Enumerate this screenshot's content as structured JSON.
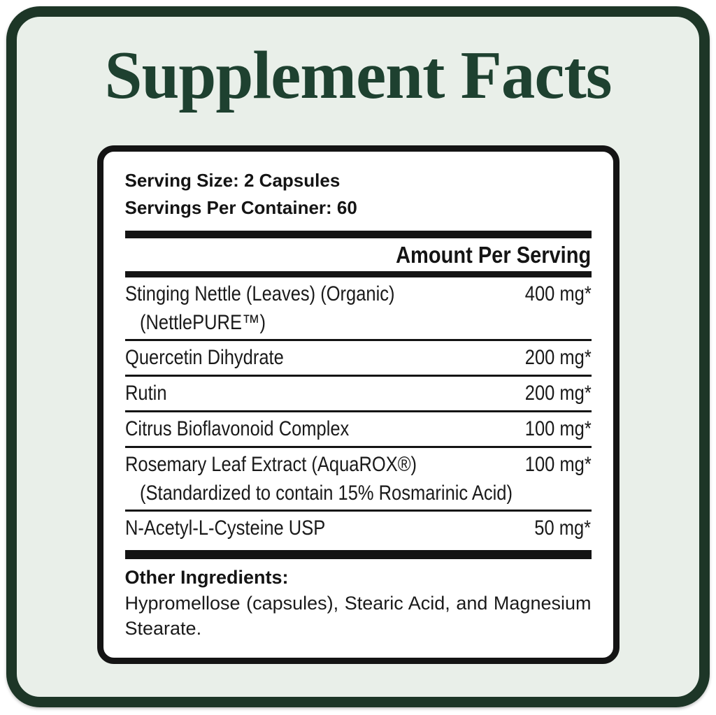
{
  "colors": {
    "outer_border_green": "#1d3627",
    "background_mint": "#e9efe9",
    "title_green": "#1e4130",
    "panel_border_black": "#141414",
    "text_black": "#1a1a1a",
    "panel_background": "#ffffff"
  },
  "title": "Supplement Facts",
  "panel": {
    "serving_size": "Serving Size: 2 Capsules",
    "servings_per_container": "Servings Per Container: 60",
    "amount_header": "Amount Per Serving",
    "rows": [
      {
        "name": "Stinging Nettle (Leaves) (Organic)",
        "subname": "(NettlePURE™)",
        "amount": "400 mg*"
      },
      {
        "name": "Quercetin Dihydrate",
        "amount": "200 mg*"
      },
      {
        "name": "Rutin",
        "amount": "200 mg*"
      },
      {
        "name": "Citrus Bioflavonoid Complex",
        "amount": "100 mg*"
      },
      {
        "name": "Rosemary Leaf Extract (AquaROX®)",
        "subname": "(Standardized to contain 15% Rosmarinic Acid)",
        "amount": "100 mg*"
      },
      {
        "name": "N-Acetyl-L-Cysteine USP",
        "amount": "50 mg*"
      }
    ],
    "other_ingredients_label": "Other Ingredients:",
    "other_ingredients_text": "Hypromellose (capsules), Stearic Acid, and Magnesium Stearate."
  }
}
